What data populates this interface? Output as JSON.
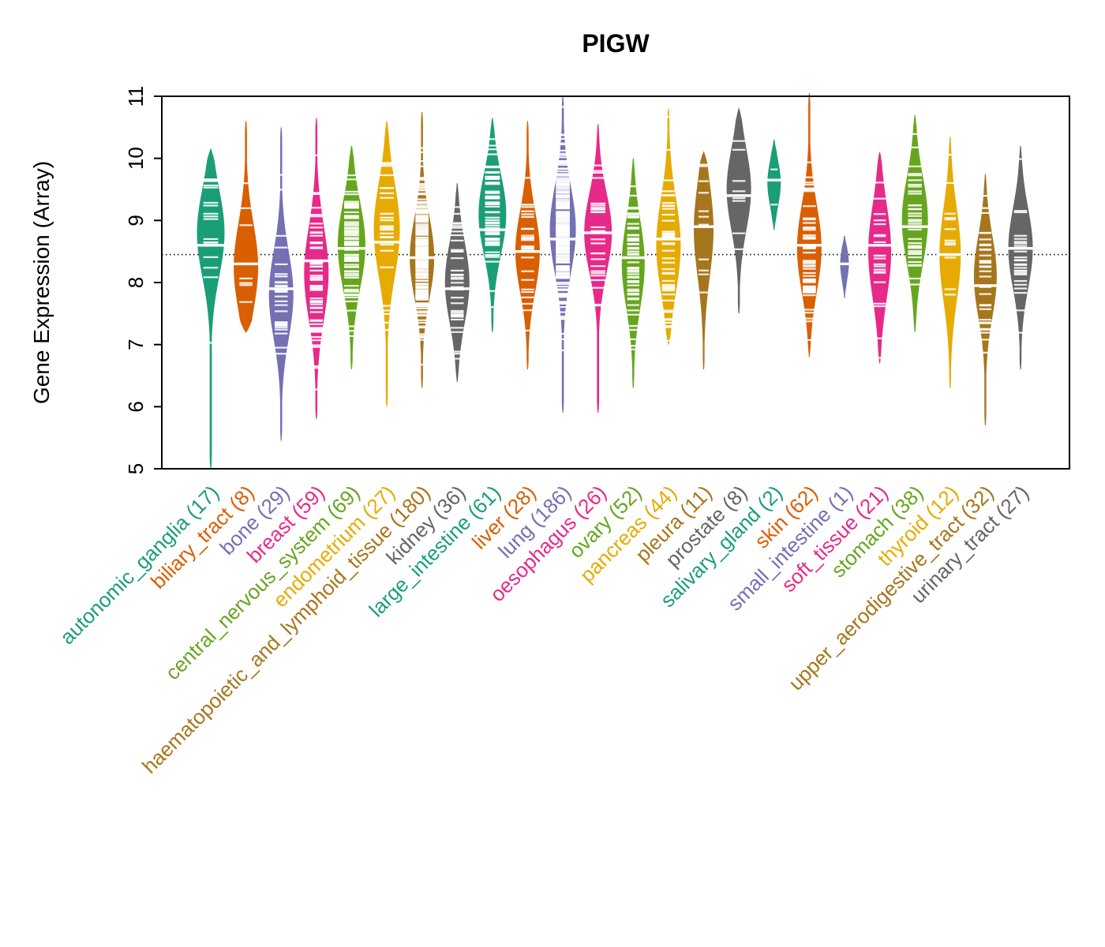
{
  "chart_data": {
    "type": "violin",
    "title": "PIGW",
    "ylabel": "Gene Expression (Array)",
    "xlabel": "",
    "ylim": [
      5,
      11
    ],
    "yticks": [
      5,
      6,
      7,
      8,
      9,
      10,
      11
    ],
    "reference_line": 8.45,
    "grid": false,
    "legend": "none",
    "palette": [
      "#1B9E77",
      "#D95F02",
      "#7570B3",
      "#E7298A",
      "#66A61E",
      "#E6AB02",
      "#A6761D",
      "#666666"
    ],
    "categories": [
      {
        "label": "autonomic_ganglia",
        "n": 17,
        "color": "#1B9E77",
        "min": 5.0,
        "max": 10.15,
        "median": 8.6,
        "mode": 8.8,
        "spread": 0.7,
        "relwidth": 0.85
      },
      {
        "label": "biliary_tract",
        "n": 8,
        "color": "#D95F02",
        "min": 7.2,
        "max": 10.6,
        "median": 8.3,
        "mode": 8.25,
        "spread": 0.7,
        "relwidth": 0.75
      },
      {
        "label": "bone",
        "n": 29,
        "color": "#7570B3",
        "min": 5.45,
        "max": 10.5,
        "median": 7.9,
        "mode": 7.8,
        "spread": 0.7,
        "relwidth": 0.75
      },
      {
        "label": "breast",
        "n": 59,
        "color": "#E7298A",
        "min": 5.8,
        "max": 10.65,
        "median": 8.35,
        "mode": 8.15,
        "spread": 0.75,
        "relwidth": 0.75
      },
      {
        "label": "central_nervous_system",
        "n": 69,
        "color": "#66A61E",
        "min": 6.6,
        "max": 10.2,
        "median": 8.55,
        "mode": 8.6,
        "spread": 0.7,
        "relwidth": 0.85
      },
      {
        "label": "endometrium",
        "n": 27,
        "color": "#E6AB02",
        "min": 6.0,
        "max": 10.6,
        "median": 8.65,
        "mode": 8.85,
        "spread": 0.75,
        "relwidth": 0.8
      },
      {
        "label": "haematopoietic_and_lymphoid_tissue",
        "n": 180,
        "color": "#A6761D",
        "min": 6.3,
        "max": 10.75,
        "median": 8.4,
        "mode": 8.4,
        "spread": 0.65,
        "relwidth": 0.75
      },
      {
        "label": "kidney",
        "n": 36,
        "color": "#666666",
        "min": 6.4,
        "max": 9.6,
        "median": 7.9,
        "mode": 8.0,
        "spread": 0.65,
        "relwidth": 0.75
      },
      {
        "label": "large_intestine",
        "n": 61,
        "color": "#1B9E77",
        "min": 7.2,
        "max": 10.65,
        "median": 8.85,
        "mode": 9.1,
        "spread": 0.65,
        "relwidth": 0.85
      },
      {
        "label": "liver",
        "n": 28,
        "color": "#D95F02",
        "min": 6.6,
        "max": 10.6,
        "median": 8.5,
        "mode": 8.5,
        "spread": 0.65,
        "relwidth": 0.75
      },
      {
        "label": "lung",
        "n": 186,
        "color": "#7570B3",
        "min": 5.9,
        "max": 11.0,
        "median": 8.7,
        "mode": 8.85,
        "spread": 0.7,
        "relwidth": 0.8
      },
      {
        "label": "oesophagus",
        "n": 26,
        "color": "#E7298A",
        "min": 5.9,
        "max": 10.55,
        "median": 8.8,
        "mode": 8.8,
        "spread": 0.65,
        "relwidth": 0.85
      },
      {
        "label": "ovary",
        "n": 52,
        "color": "#66A61E",
        "min": 6.3,
        "max": 10.0,
        "median": 8.4,
        "mode": 8.3,
        "spread": 0.7,
        "relwidth": 0.7
      },
      {
        "label": "pancreas",
        "n": 44,
        "color": "#E6AB02",
        "min": 7.0,
        "max": 10.8,
        "median": 8.7,
        "mode": 8.6,
        "spread": 0.75,
        "relwidth": 0.75
      },
      {
        "label": "pleura",
        "n": 11,
        "color": "#A6761D",
        "min": 6.6,
        "max": 10.1,
        "median": 8.9,
        "mode": 8.85,
        "spread": 0.75,
        "relwidth": 0.6
      },
      {
        "label": "prostate",
        "n": 8,
        "color": "#666666",
        "min": 7.5,
        "max": 10.8,
        "median": 9.4,
        "mode": 9.5,
        "spread": 0.65,
        "relwidth": 0.75
      },
      {
        "label": "salivary_gland",
        "n": 2,
        "color": "#1B9E77",
        "min": 8.85,
        "max": 10.3,
        "median": 9.65,
        "mode": 9.6,
        "spread": 0.35,
        "relwidth": 0.4
      },
      {
        "label": "skin",
        "n": 62,
        "color": "#D95F02",
        "min": 6.8,
        "max": 11.05,
        "median": 8.6,
        "mode": 8.55,
        "spread": 0.7,
        "relwidth": 0.75
      },
      {
        "label": "small_intestine",
        "n": 1,
        "color": "#7570B3",
        "min": 7.75,
        "max": 8.75,
        "median": 8.3,
        "mode": 8.3,
        "spread": 0.25,
        "relwidth": 0.25
      },
      {
        "label": "soft_tissue",
        "n": 21,
        "color": "#E7298A",
        "min": 6.7,
        "max": 10.1,
        "median": 8.6,
        "mode": 8.5,
        "spread": 0.75,
        "relwidth": 0.7
      },
      {
        "label": "stomach",
        "n": 38,
        "color": "#66A61E",
        "min": 7.2,
        "max": 10.7,
        "median": 8.9,
        "mode": 9.0,
        "spread": 0.7,
        "relwidth": 0.8
      },
      {
        "label": "thyroid",
        "n": 12,
        "color": "#E6AB02",
        "min": 6.3,
        "max": 10.35,
        "median": 8.45,
        "mode": 8.45,
        "spread": 0.75,
        "relwidth": 0.65
      },
      {
        "label": "upper_aerodigestive_tract",
        "n": 32,
        "color": "#A6761D",
        "min": 5.7,
        "max": 9.75,
        "median": 7.95,
        "mode": 8.1,
        "spread": 0.65,
        "relwidth": 0.7
      },
      {
        "label": "urinary_tract",
        "n": 27,
        "color": "#666666",
        "min": 6.6,
        "max": 10.2,
        "median": 8.55,
        "mode": 8.55,
        "spread": 0.65,
        "relwidth": 0.75
      }
    ]
  }
}
